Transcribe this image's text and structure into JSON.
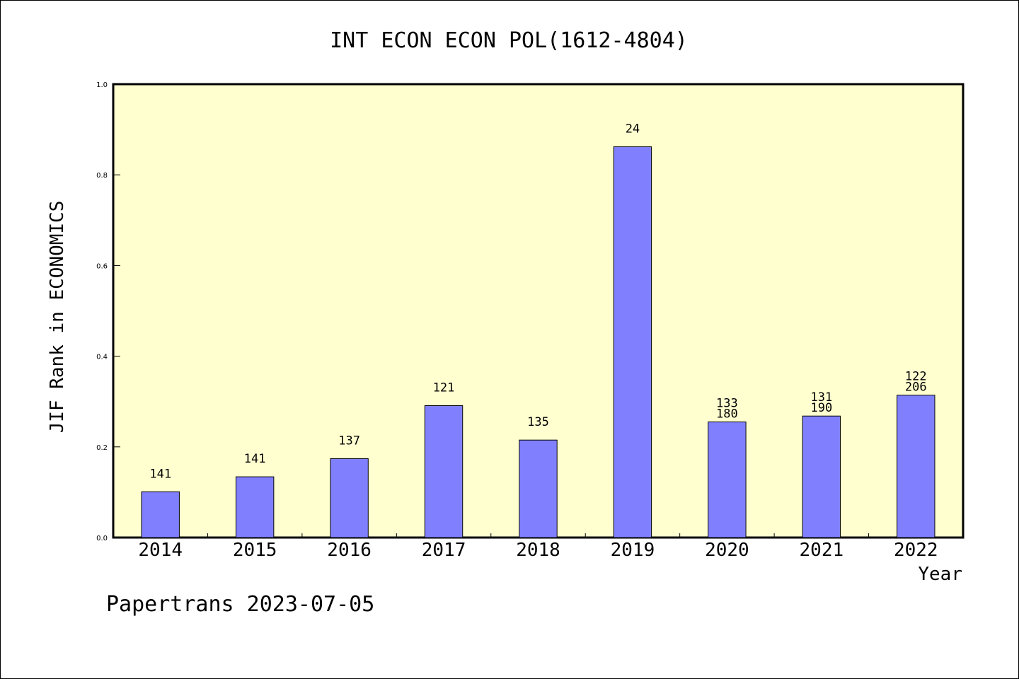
{
  "chart_data": {
    "type": "bar",
    "title": "INT ECON ECON POL(1612-4804)",
    "xlabel": "Year",
    "ylabel": "JIF Rank in ECONOMICS",
    "ylim": [
      0,
      1.0
    ],
    "yticks": [
      "0.0",
      "0.2",
      "0.4",
      "0.6",
      "0.8",
      "1.0"
    ],
    "categories": [
      "2014",
      "2015",
      "2016",
      "2017",
      "2018",
      "2019",
      "2020",
      "2021",
      "2022"
    ],
    "values": [
      0.101,
      0.134,
      0.174,
      0.291,
      0.215,
      0.862,
      0.255,
      0.268,
      0.314
    ],
    "bar_labels": [
      [
        "141"
      ],
      [
        "141"
      ],
      [
        "137"
      ],
      [
        "121"
      ],
      [
        "135"
      ],
      [
        "24"
      ],
      [
        "133",
        "180"
      ],
      [
        "131",
        "190"
      ],
      [
        "122",
        "206"
      ]
    ],
    "grid": false,
    "colors": {
      "bar": "#8080ff",
      "plot_background": "#ffffd0"
    }
  },
  "footer": "Papertrans 2023-07-05"
}
